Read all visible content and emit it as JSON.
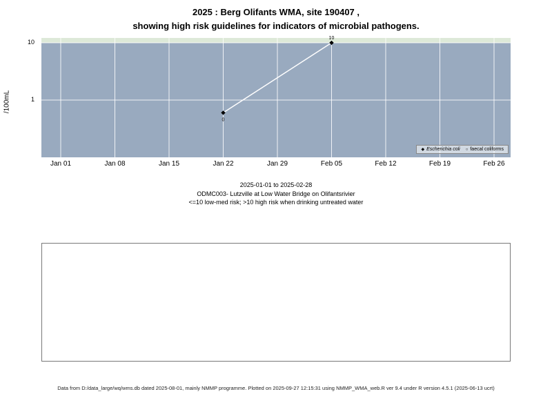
{
  "title": {
    "line1": "2025 : Berg Olifants WMA, site 190407 ,",
    "line2": "showing high risk guidelines for indicators of microbial pathogens."
  },
  "chart_data": {
    "type": "line",
    "title": "2025 : Berg Olifants WMA, site 190407 , showing high risk guidelines for indicators of microbial pathogens.",
    "xlabel": "",
    "ylabel": "/100mL",
    "y_scale": "log",
    "y_ticks": [
      10,
      1
    ],
    "ylim": [
      0.1,
      12
    ],
    "categories": [
      "Jan 01",
      "Jan 08",
      "Jan 15",
      "Jan 22",
      "Jan 29",
      "Feb 05",
      "Feb 12",
      "Feb 19",
      "Feb 26"
    ],
    "guideline": {
      "value": 10,
      "band_color": "#dde9d8",
      "note": "<=10 low-med risk; >10 high risk when drinking untreated water"
    },
    "series": [
      {
        "name": "Escherichia coli",
        "marker": "diamond",
        "points": [
          {
            "x": "Jan 22",
            "value": 0,
            "plotted": 0.6,
            "label": "0",
            "label_pos": "below"
          },
          {
            "x": "Feb 05",
            "value": 10,
            "plotted": 10,
            "label": "10",
            "label_pos": "above"
          }
        ]
      },
      {
        "name": "faecal coliforms",
        "marker": "circle",
        "points": []
      }
    ],
    "panel_color": "#99aabf",
    "grid_color": "#ffffff",
    "line_color": "#ffffff",
    "point_color": "#000000",
    "legend_position": "bottom-right"
  },
  "legend": {
    "items": [
      {
        "glyph": "◆",
        "label": "Escherichia coli"
      },
      {
        "glyph": "○",
        "label": "faecal coliforms"
      }
    ]
  },
  "caption": {
    "date_range": "2025-01-01 to 2025-02-28",
    "site": "ODMC003- Lutzville at Low Water Bridge on Olifantsrivier",
    "risk_note": "<=10 low-med risk; >10 high risk when drinking untreated water"
  },
  "footer": {
    "text": "Data from D:/data_large/wq/wms.db dated 2025-08-01, mainly NMMP programme. Plotted on 2025-09-27 12:15:31 using NMMP_WMA_web.R ver 9.4 under R version 4.5.1 (2025-06-13 ucrt)"
  }
}
